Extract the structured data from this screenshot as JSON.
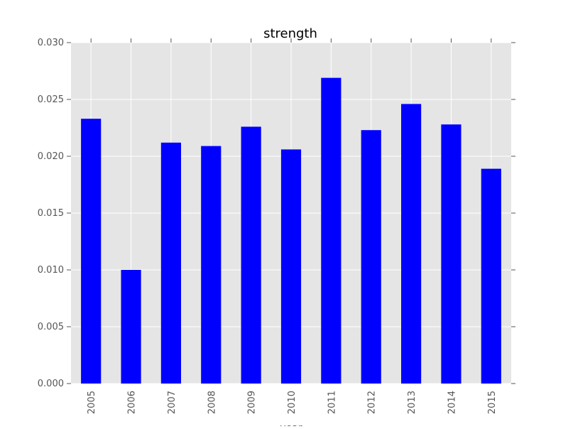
{
  "chart_data": {
    "type": "bar",
    "title": "strength",
    "xlabel": "year",
    "ylabel": "",
    "categories": [
      "2005",
      "2006",
      "2007",
      "2008",
      "2009",
      "2010",
      "2011",
      "2012",
      "2013",
      "2014",
      "2015"
    ],
    "values": [
      0.0233,
      0.01,
      0.0212,
      0.0209,
      0.0226,
      0.0206,
      0.0269,
      0.0223,
      0.0246,
      0.0228,
      0.0189
    ],
    "ylim": [
      0,
      0.03
    ],
    "yticks": [
      "0.000",
      "0.005",
      "0.010",
      "0.015",
      "0.020",
      "0.025",
      "0.030"
    ],
    "grid": true,
    "legend": "none",
    "colors": {
      "bar": "#0000ff",
      "plot_background": "#e5e5e5",
      "grid": "#ffffff"
    }
  }
}
